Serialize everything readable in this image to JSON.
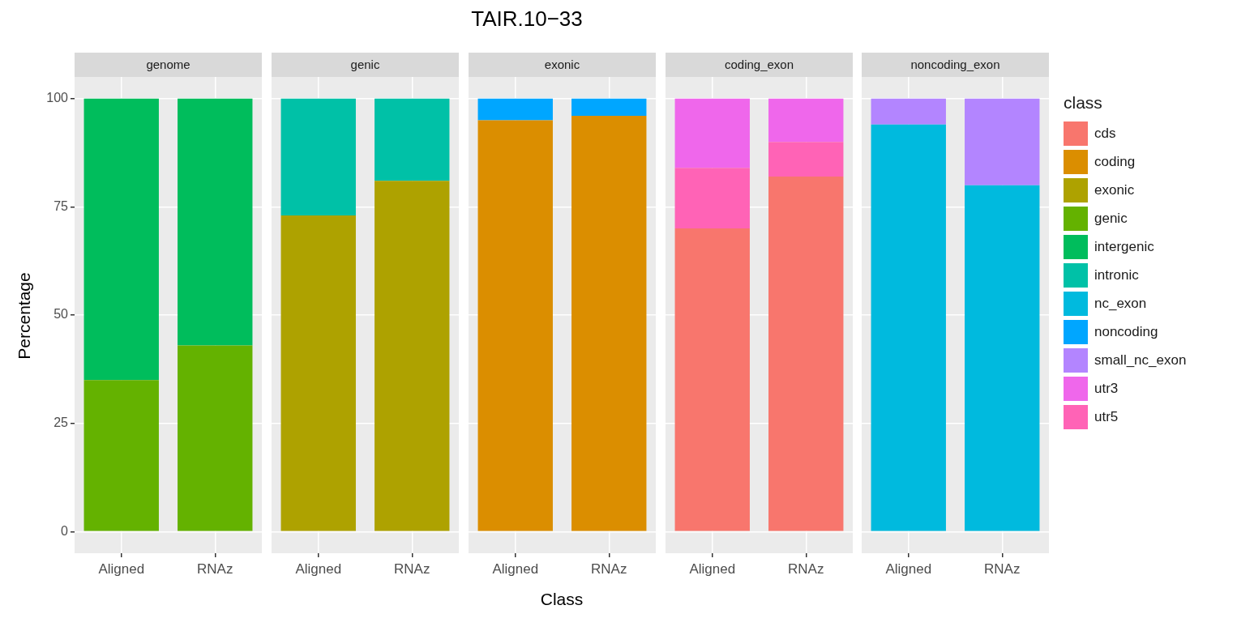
{
  "chart_data": [
    {
      "type": "bar",
      "title": "genome",
      "ylabel": "Percentage",
      "legend": "right",
      "categories": [
        "Aligned",
        "RNAz"
      ],
      "stacked": true,
      "ylim": [
        -5,
        105
      ],
      "yticks": [
        0,
        25,
        50,
        75,
        100
      ],
      "grid": true,
      "series": [
        {
          "name": "genic",
          "color": "#64b200",
          "values": [
            35,
            43
          ]
        },
        {
          "name": "intergenic",
          "color": "#00bd5c",
          "values": [
            65,
            57
          ]
        }
      ]
    },
    {
      "type": "bar",
      "title": "genic",
      "legend": "right",
      "categories": [
        "Aligned",
        "RNAz"
      ],
      "stacked": true,
      "ylim": [
        -5,
        105
      ],
      "yticks": [
        0,
        25,
        50,
        75,
        100
      ],
      "grid": true,
      "tick_labels": "x",
      "series": [
        {
          "name": "exonic",
          "color": "#aea200",
          "values": [
            73,
            81
          ]
        },
        {
          "name": "intronic",
          "color": "#00c1a7",
          "values": [
            27,
            19
          ]
        }
      ]
    },
    {
      "type": "bar",
      "title": "exonic",
      "subtitle": "TAIR.10−33",
      "xlabel": "Class",
      "legend": "right",
      "categories": [
        "Aligned",
        "RNAz"
      ],
      "stacked": true,
      "ylim": [
        -5,
        105
      ],
      "yticks": [
        0,
        25,
        50,
        75,
        100
      ],
      "grid": true,
      "tick_labels": "x",
      "series": [
        {
          "name": "coding",
          "color": "#db8e00",
          "values": [
            95,
            96
          ]
        },
        {
          "name": "noncoding",
          "color": "#00a6ff",
          "values": [
            5,
            4
          ]
        }
      ]
    },
    {
      "type": "bar",
      "title": "coding_exon",
      "legend": "right",
      "categories": [
        "Aligned",
        "RNAz"
      ],
      "stacked": true,
      "ylim": [
        -5,
        105
      ],
      "yticks": [
        0,
        25,
        50,
        75,
        100
      ],
      "grid": true,
      "tick_labels": "x",
      "series": [
        {
          "name": "cds",
          "color": "#f8766d",
          "values": [
            70,
            82
          ]
        },
        {
          "name": "utr5",
          "color": "#ff63b6",
          "values": [
            14,
            8
          ]
        },
        {
          "name": "utr3",
          "color": "#ef67eb",
          "values": [
            16,
            10
          ]
        }
      ]
    },
    {
      "type": "bar",
      "title": "noncoding_exon",
      "categories": [
        "Aligned",
        "RNAz"
      ],
      "stacked": true,
      "ylim": [
        -5,
        105
      ],
      "yticks": [
        0,
        25,
        50,
        75,
        100
      ],
      "grid": true,
      "tick_labels": "x",
      "legend": "right",
      "legend_title": "class",
      "series": [
        {
          "name": "nc_exon",
          "color": "#00bade",
          "values": [
            94,
            80
          ]
        },
        {
          "name": "small_nc_exon",
          "color": "#b385ff",
          "values": [
            6,
            20
          ]
        }
      ]
    }
  ]
}
